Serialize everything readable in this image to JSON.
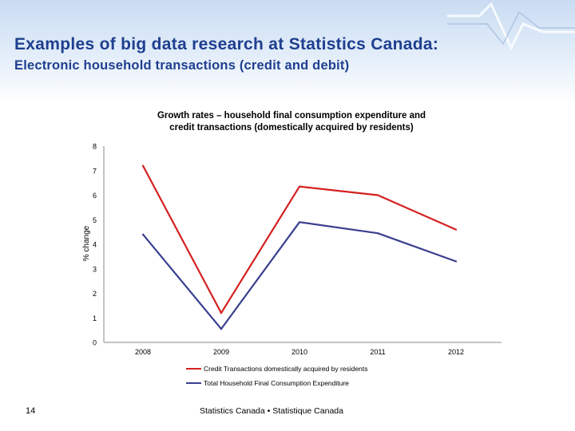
{
  "slide": {
    "title": "Examples of big data research at Statistics Canada:",
    "subtitle": "Electronic household transactions (credit and debit)",
    "page_number": "14",
    "footer": "Statistics Canada • Statistique Canada"
  },
  "colors": {
    "title": "#1f3f8f",
    "credit": "#d42020",
    "expenditure": "#3a3f8f",
    "axis": "#888888"
  },
  "chart_data": {
    "type": "line",
    "title_lines": [
      "Growth rates – household final consumption expenditure and",
      "credit transactions (domestically acquired by residents)"
    ],
    "xlabel": "",
    "ylabel": "% change",
    "x": [
      "2008",
      "2009",
      "2010",
      "2011",
      "2012"
    ],
    "ylim": [
      0,
      8
    ],
    "yticks": [
      "0",
      "1",
      "2",
      "3",
      "4",
      "5",
      "6",
      "7",
      "8"
    ],
    "grid": false,
    "legend_position": "bottom",
    "series": [
      {
        "name": "Credit Transactions domestically acquired by residents",
        "values": [
          7.2,
          1.2,
          6.35,
          6.0,
          4.6
        ],
        "color": "#d42020"
      },
      {
        "name": "Total Household Final Consumption Expenditure",
        "values": [
          4.4,
          0.55,
          4.9,
          4.45,
          3.3
        ],
        "color": "#3a3f8f"
      }
    ]
  }
}
